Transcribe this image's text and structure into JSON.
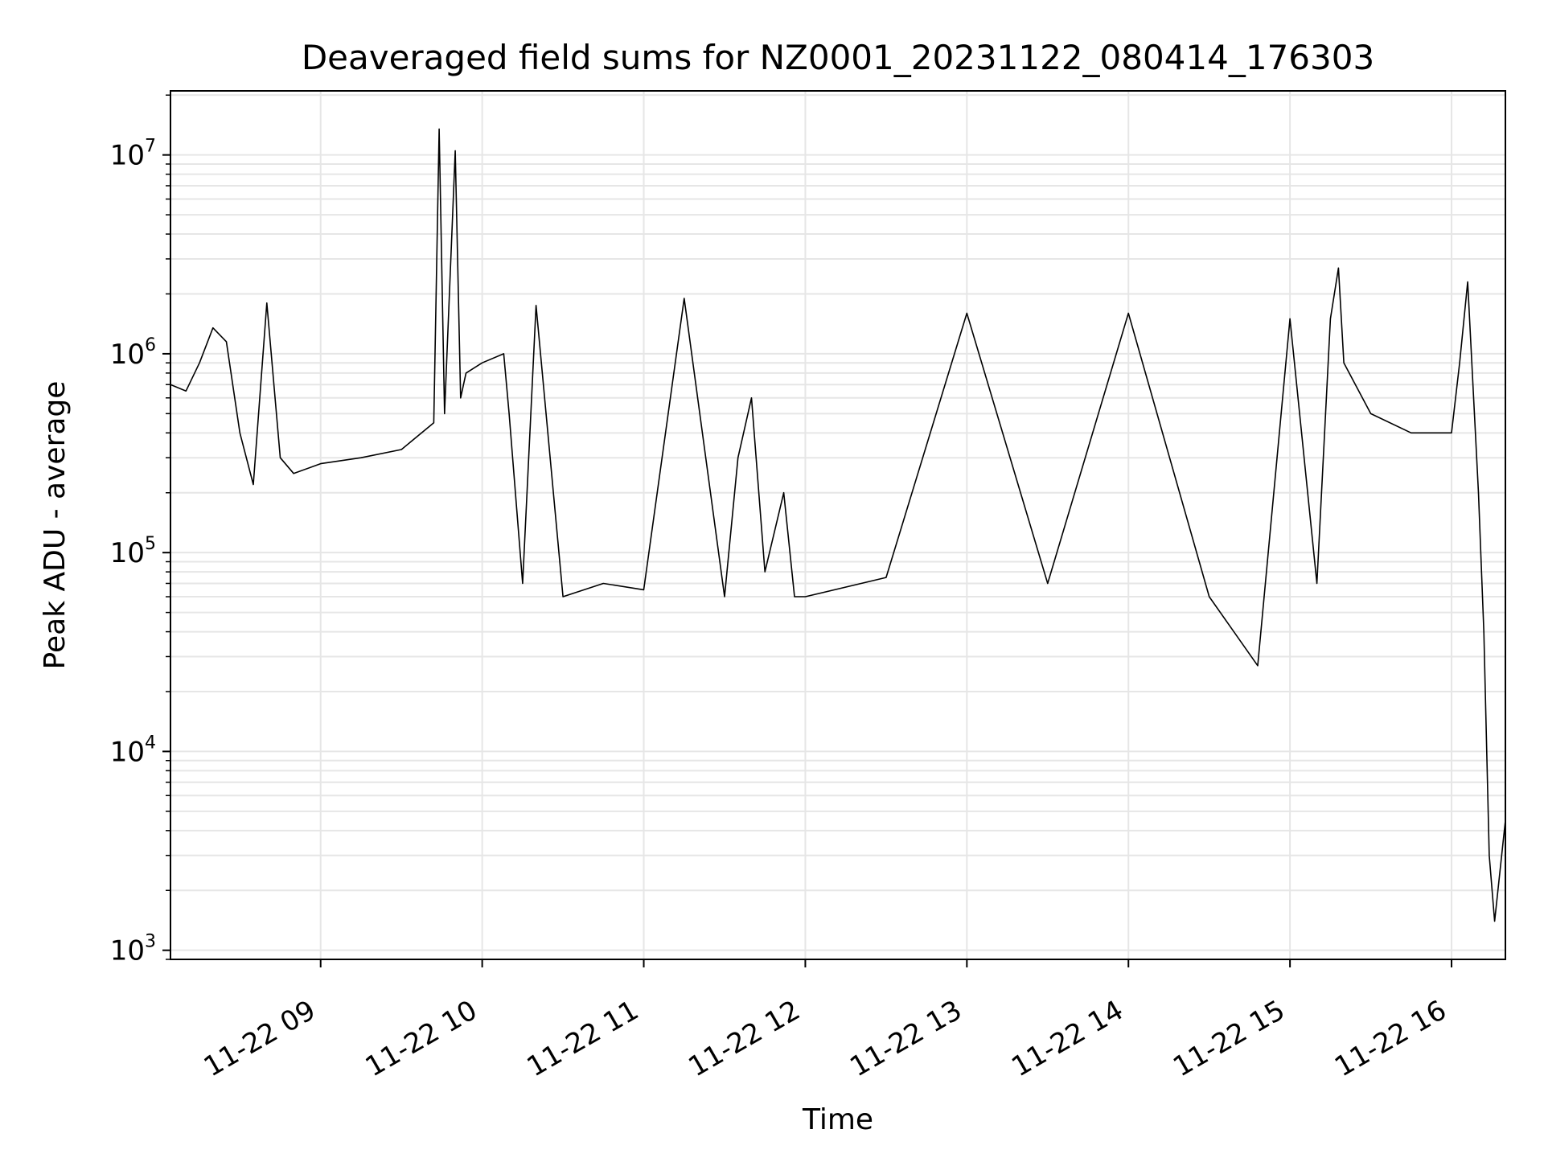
{
  "chart_data": {
    "type": "line",
    "title": "Deaveraged field sums for NZ0001_20231122_080414_176303",
    "xlabel": "Time",
    "ylabel": "Peak ADU - average",
    "yscale": "log",
    "ylim": [
      900,
      21000000
    ],
    "xlim": [
      "2023-11-22T08:04:14",
      "2023-11-22T16:20:00"
    ],
    "grid": true,
    "line_color": "#000000",
    "grid_color": "#e6e6e6",
    "y_ticks": [
      {
        "base": "10",
        "exp": "3"
      },
      {
        "base": "10",
        "exp": "4"
      },
      {
        "base": "10",
        "exp": "5"
      },
      {
        "base": "10",
        "exp": "6"
      },
      {
        "base": "10",
        "exp": "7"
      }
    ],
    "x_ticks": [
      "11-22 09",
      "11-22 10",
      "11-22 11",
      "11-22 12",
      "11-22 13",
      "11-22 14",
      "11-22 15",
      "11-22 16"
    ],
    "series": [
      {
        "x": [
          "2023-11-22T08:04:14",
          "2023-11-22T08:10:00",
          "2023-11-22T08:15:00",
          "2023-11-22T08:20:00",
          "2023-11-22T08:25:00",
          "2023-11-22T08:30:00",
          "2023-11-22T08:35:00",
          "2023-11-22T08:40:00",
          "2023-11-22T08:45:00",
          "2023-11-22T08:50:00",
          "2023-11-22T09:00:00",
          "2023-11-22T09:15:00",
          "2023-11-22T09:30:00",
          "2023-11-22T09:42:00",
          "2023-11-22T09:44:00",
          "2023-11-22T09:46:00",
          "2023-11-22T09:50:00",
          "2023-11-22T09:52:00",
          "2023-11-22T09:54:00",
          "2023-11-22T10:00:00",
          "2023-11-22T10:08:00",
          "2023-11-22T10:10:00",
          "2023-11-22T10:15:00",
          "2023-11-22T10:20:00",
          "2023-11-22T10:30:00",
          "2023-11-22T10:45:00",
          "2023-11-22T11:00:00",
          "2023-11-22T11:15:00",
          "2023-11-22T11:30:00",
          "2023-11-22T11:35:00",
          "2023-11-22T11:40:00",
          "2023-11-22T11:45:00",
          "2023-11-22T11:52:00",
          "2023-11-22T11:56:00",
          "2023-11-22T12:00:00",
          "2023-11-22T12:30:00",
          "2023-11-22T13:00:00",
          "2023-11-22T13:30:00",
          "2023-11-22T14:00:00",
          "2023-11-22T14:30:00",
          "2023-11-22T14:48:00",
          "2023-11-22T15:00:00",
          "2023-11-22T15:10:00",
          "2023-11-22T15:15:00",
          "2023-11-22T15:18:00",
          "2023-11-22T15:20:00",
          "2023-11-22T15:30:00",
          "2023-11-22T15:45:00",
          "2023-11-22T16:00:00",
          "2023-11-22T16:03:00",
          "2023-11-22T16:06:00",
          "2023-11-22T16:10:00",
          "2023-11-22T16:12:00",
          "2023-11-22T16:14:00",
          "2023-11-22T16:16:00",
          "2023-11-22T16:20:00"
        ],
        "values": [
          700000,
          650000,
          900000,
          1350000,
          1150000,
          400000,
          220000,
          1800000,
          300000,
          250000,
          280000,
          300000,
          330000,
          450000,
          13500000,
          500000,
          10500000,
          600000,
          800000,
          900000,
          1000000,
          500000,
          70000,
          1750000,
          60000,
          70000,
          65000,
          1900000,
          60000,
          300000,
          600000,
          80000,
          200000,
          60000,
          60000,
          75000,
          1600000,
          70000,
          1600000,
          60000,
          27000,
          1500000,
          70000,
          1500000,
          2700000,
          900000,
          500000,
          400000,
          400000,
          900000,
          2300000,
          200000,
          40000,
          3000,
          1400,
          4500
        ]
      }
    ]
  }
}
